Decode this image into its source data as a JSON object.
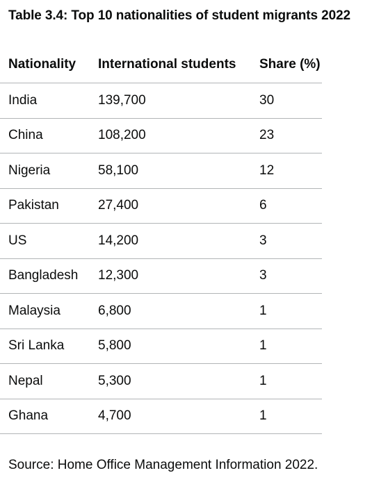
{
  "table": {
    "caption": "Table 3.4: Top 10 nationalities of student migrants 2022",
    "headers": [
      "Nationality",
      "International students",
      "Share (%)"
    ],
    "rows": [
      [
        "India",
        "139,700",
        "30"
      ],
      [
        "China",
        "108,200",
        "23"
      ],
      [
        "Nigeria",
        "58,100",
        "12"
      ],
      [
        "Pakistan",
        "27,400",
        "6"
      ],
      [
        "US",
        "14,200",
        "3"
      ],
      [
        "Bangladesh",
        "12,300",
        "3"
      ],
      [
        "Malaysia",
        "6,800",
        "1"
      ],
      [
        "Sri Lanka",
        "5,800",
        "1"
      ],
      [
        "Nepal",
        "5,300",
        "1"
      ],
      [
        "Ghana",
        "4,700",
        "1"
      ]
    ]
  },
  "source": "Source: Home Office Management Information 2022."
}
